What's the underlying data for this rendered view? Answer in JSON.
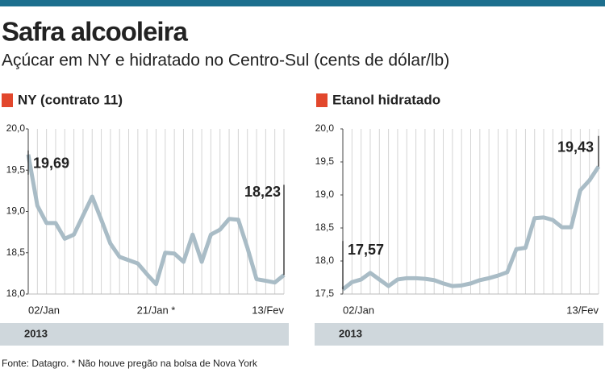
{
  "header": {
    "title": "Safra alcooleira",
    "subtitle": "Açúcar em NY e hidratado no Centro-Sul  (cents de dólar/lb)"
  },
  "source": "Fonte: Datagro. * Não houve pregão na bolsa de Nova York",
  "chart_data": [
    {
      "type": "line",
      "title": "NY (contrato 11)",
      "period": "2013",
      "categories": [
        "02/Jan",
        null,
        null,
        null,
        null,
        null,
        null,
        null,
        null,
        null,
        null,
        null,
        null,
        null,
        "21/Jan *",
        null,
        null,
        null,
        null,
        null,
        null,
        null,
        null,
        null,
        null,
        null,
        null,
        null,
        "13/Fev"
      ],
      "values": [
        19.69,
        19.07,
        18.86,
        18.86,
        18.67,
        18.72,
        18.95,
        19.18,
        18.9,
        18.61,
        18.45,
        18.41,
        18.37,
        18.24,
        18.12,
        18.5,
        18.49,
        18.39,
        18.72,
        18.39,
        18.72,
        18.78,
        18.91,
        18.9,
        18.56,
        18.18,
        18.16,
        18.14,
        18.23
      ],
      "value_labels": [
        "19,69",
        null,
        null,
        null,
        null,
        null,
        null,
        null,
        null,
        null,
        null,
        null,
        null,
        null,
        null,
        null,
        null,
        null,
        null,
        null,
        null,
        null,
        null,
        null,
        null,
        null,
        null,
        null,
        "18,23"
      ],
      "color": "#a9bcc6",
      "ylim": [
        18.0,
        20.0
      ],
      "yticks": [
        {
          "value": 18.0,
          "label": "18,0"
        },
        {
          "value": 18.5,
          "label": "18,5"
        },
        {
          "value": 19.0,
          "label": "19,0"
        },
        {
          "value": 19.5,
          "label": "19,5"
        },
        {
          "value": 20.0,
          "label": "20,0"
        }
      ]
    },
    {
      "type": "line",
      "title": "Etanol hidratado",
      "period": "2013",
      "categories": [
        "02/Jan",
        null,
        null,
        null,
        null,
        null,
        null,
        null,
        null,
        null,
        null,
        null,
        null,
        null,
        null,
        null,
        null,
        null,
        null,
        null,
        null,
        null,
        null,
        null,
        null,
        null,
        null,
        null,
        "13/Fev"
      ],
      "values": [
        17.57,
        17.68,
        17.72,
        17.82,
        17.72,
        17.62,
        17.72,
        17.74,
        17.74,
        17.73,
        17.71,
        17.66,
        17.62,
        17.63,
        17.66,
        17.71,
        17.74,
        17.78,
        17.83,
        18.18,
        18.2,
        18.65,
        18.66,
        18.62,
        18.51,
        18.51,
        19.07,
        19.22,
        19.43
      ],
      "value_labels": [
        "17,57",
        null,
        null,
        null,
        null,
        null,
        null,
        null,
        null,
        null,
        null,
        null,
        null,
        null,
        null,
        null,
        null,
        null,
        null,
        null,
        null,
        null,
        null,
        null,
        null,
        null,
        null,
        null,
        "19,43"
      ],
      "color": "#a9bcc6",
      "ylim": [
        17.5,
        20.0
      ],
      "yticks": [
        {
          "value": 17.5,
          "label": "17,5"
        },
        {
          "value": 18.0,
          "label": "18,0"
        },
        {
          "value": 18.5,
          "label": "18,5"
        },
        {
          "value": 19.0,
          "label": "19,0"
        },
        {
          "value": 19.5,
          "label": "19,5"
        },
        {
          "value": 20.0,
          "label": "20,0"
        }
      ]
    }
  ]
}
